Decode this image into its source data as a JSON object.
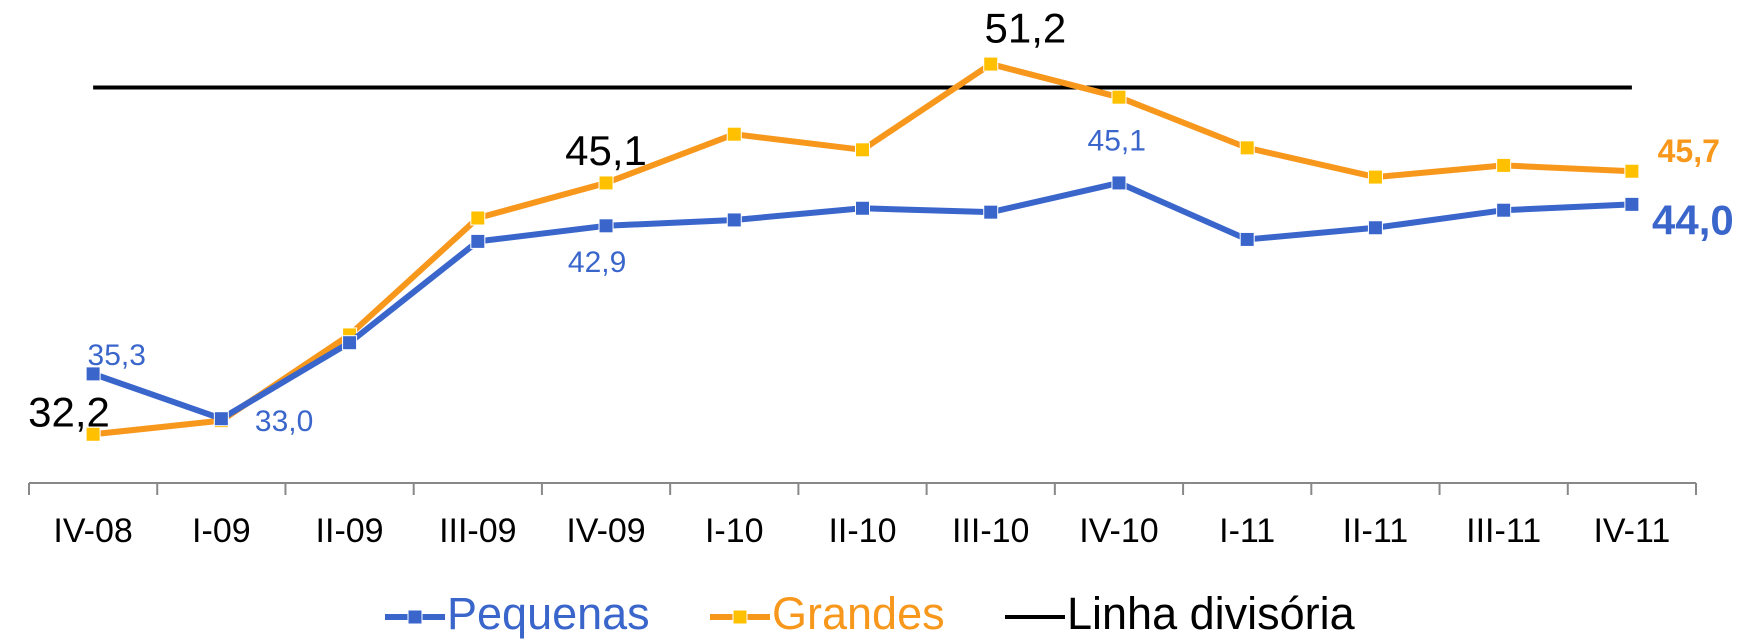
{
  "chart_data": {
    "type": "line",
    "categories": [
      "IV-08",
      "I-09",
      "II-09",
      "III-09",
      "IV-09",
      "I-10",
      "II-10",
      "III-10",
      "IV-10",
      "I-11",
      "II-11",
      "III-11",
      "IV-11"
    ],
    "series": [
      {
        "name": "Pequenas",
        "color": "#3a66cc",
        "marker": "square",
        "marker_color": "#3a66cc",
        "values": [
          35.3,
          33.0,
          36.9,
          42.1,
          42.9,
          43.2,
          43.8,
          43.6,
          45.1,
          42.2,
          42.8,
          43.7,
          44.0
        ],
        "value_labels": [
          "35,3",
          "33,0",
          null,
          null,
          "42,9",
          null,
          null,
          null,
          "45,1",
          null,
          null,
          null,
          "44,0"
        ]
      },
      {
        "name": "Grandes",
        "color": "#f7981d",
        "marker": "square",
        "marker_color": "#ffc000",
        "values": [
          32.2,
          32.9,
          37.3,
          43.3,
          45.1,
          47.6,
          46.8,
          51.2,
          49.5,
          46.9,
          45.4,
          46.0,
          45.7
        ],
        "value_labels": [
          "32,2",
          null,
          null,
          null,
          "45,1",
          null,
          null,
          "51,2",
          null,
          null,
          null,
          null,
          "45,7"
        ]
      },
      {
        "name": "Linha divisória",
        "color": "#000000",
        "marker": null,
        "values": [
          50.0,
          50.0,
          50.0,
          50.0,
          50.0,
          50.0,
          50.0,
          50.0,
          50.0,
          50.0,
          50.0,
          50.0,
          50.0
        ]
      }
    ],
    "ylim": [
      29.7,
      53
    ],
    "legend": "bottom"
  }
}
